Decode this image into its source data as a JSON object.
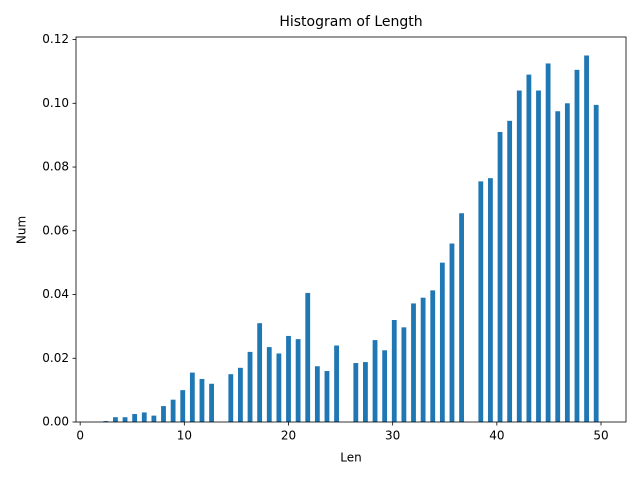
{
  "chart_data": {
    "type": "histogram",
    "title": "Histogram of Length",
    "xlabel": "Len",
    "ylabel": "Num",
    "bins": [
      2,
      2.9231,
      3.8462,
      4.7692,
      5.6923,
      6.6154,
      7.5385,
      8.4615,
      9.3846,
      10.3077,
      11.2308,
      12.1538,
      13.0769,
      14,
      14.9231,
      15.8462,
      16.7692,
      17.6923,
      18.6154,
      19.5385,
      20.4615,
      21.3846,
      22.3077,
      23.2308,
      24.1538,
      25.0769,
      26,
      26.9231,
      27.8462,
      28.7692,
      29.6923,
      30.6154,
      31.5385,
      32.4615,
      33.3846,
      34.3077,
      35.2308,
      36.1538,
      37.0769,
      38,
      38.9231,
      39.8462,
      40.7692,
      41.6923,
      42.6154,
      43.5385,
      44.4615,
      45.3846,
      46.3077,
      47.2308,
      48.1538,
      49.0769,
      50
    ],
    "values": [
      0.0003,
      0.0015,
      0.0015,
      0.0025,
      0.003,
      0.002,
      0.005,
      0.007,
      0.01,
      0.0155,
      0.0135,
      0.012,
      0,
      0.015,
      0.017,
      0.022,
      0.031,
      0.0235,
      0.0215,
      0.027,
      0.026,
      0.0405,
      0.0175,
      0.016,
      0.024,
      0,
      0.0185,
      0.0188,
      0.0257,
      0.0225,
      0.032,
      0.0297,
      0.0372,
      0.039,
      0.0413,
      0.05,
      0.056,
      0.0655,
      0,
      0.0755,
      0.0765,
      0.091,
      0.0945,
      0.104,
      0.109,
      0.104,
      0.1125,
      0.0975,
      0.1,
      0.1105,
      0.115,
      0.0995
    ],
    "color": "#1f77b4",
    "xlim": [
      -0.4,
      52.4
    ],
    "xticks": [
      0,
      10,
      20,
      30,
      40,
      50
    ],
    "ylim": [
      0,
      0.1208
    ],
    "yticks": [
      {
        "value": 0,
        "label": "0.00"
      },
      {
        "value": 0.02,
        "label": "0.02"
      },
      {
        "value": 0.04,
        "label": "0.04"
      },
      {
        "value": 0.06,
        "label": "0.06"
      },
      {
        "value": 0.08,
        "label": "0.08"
      },
      {
        "value": 0.1,
        "label": "0.10"
      },
      {
        "value": 0.12,
        "label": "0.12"
      }
    ],
    "grid": false
  }
}
